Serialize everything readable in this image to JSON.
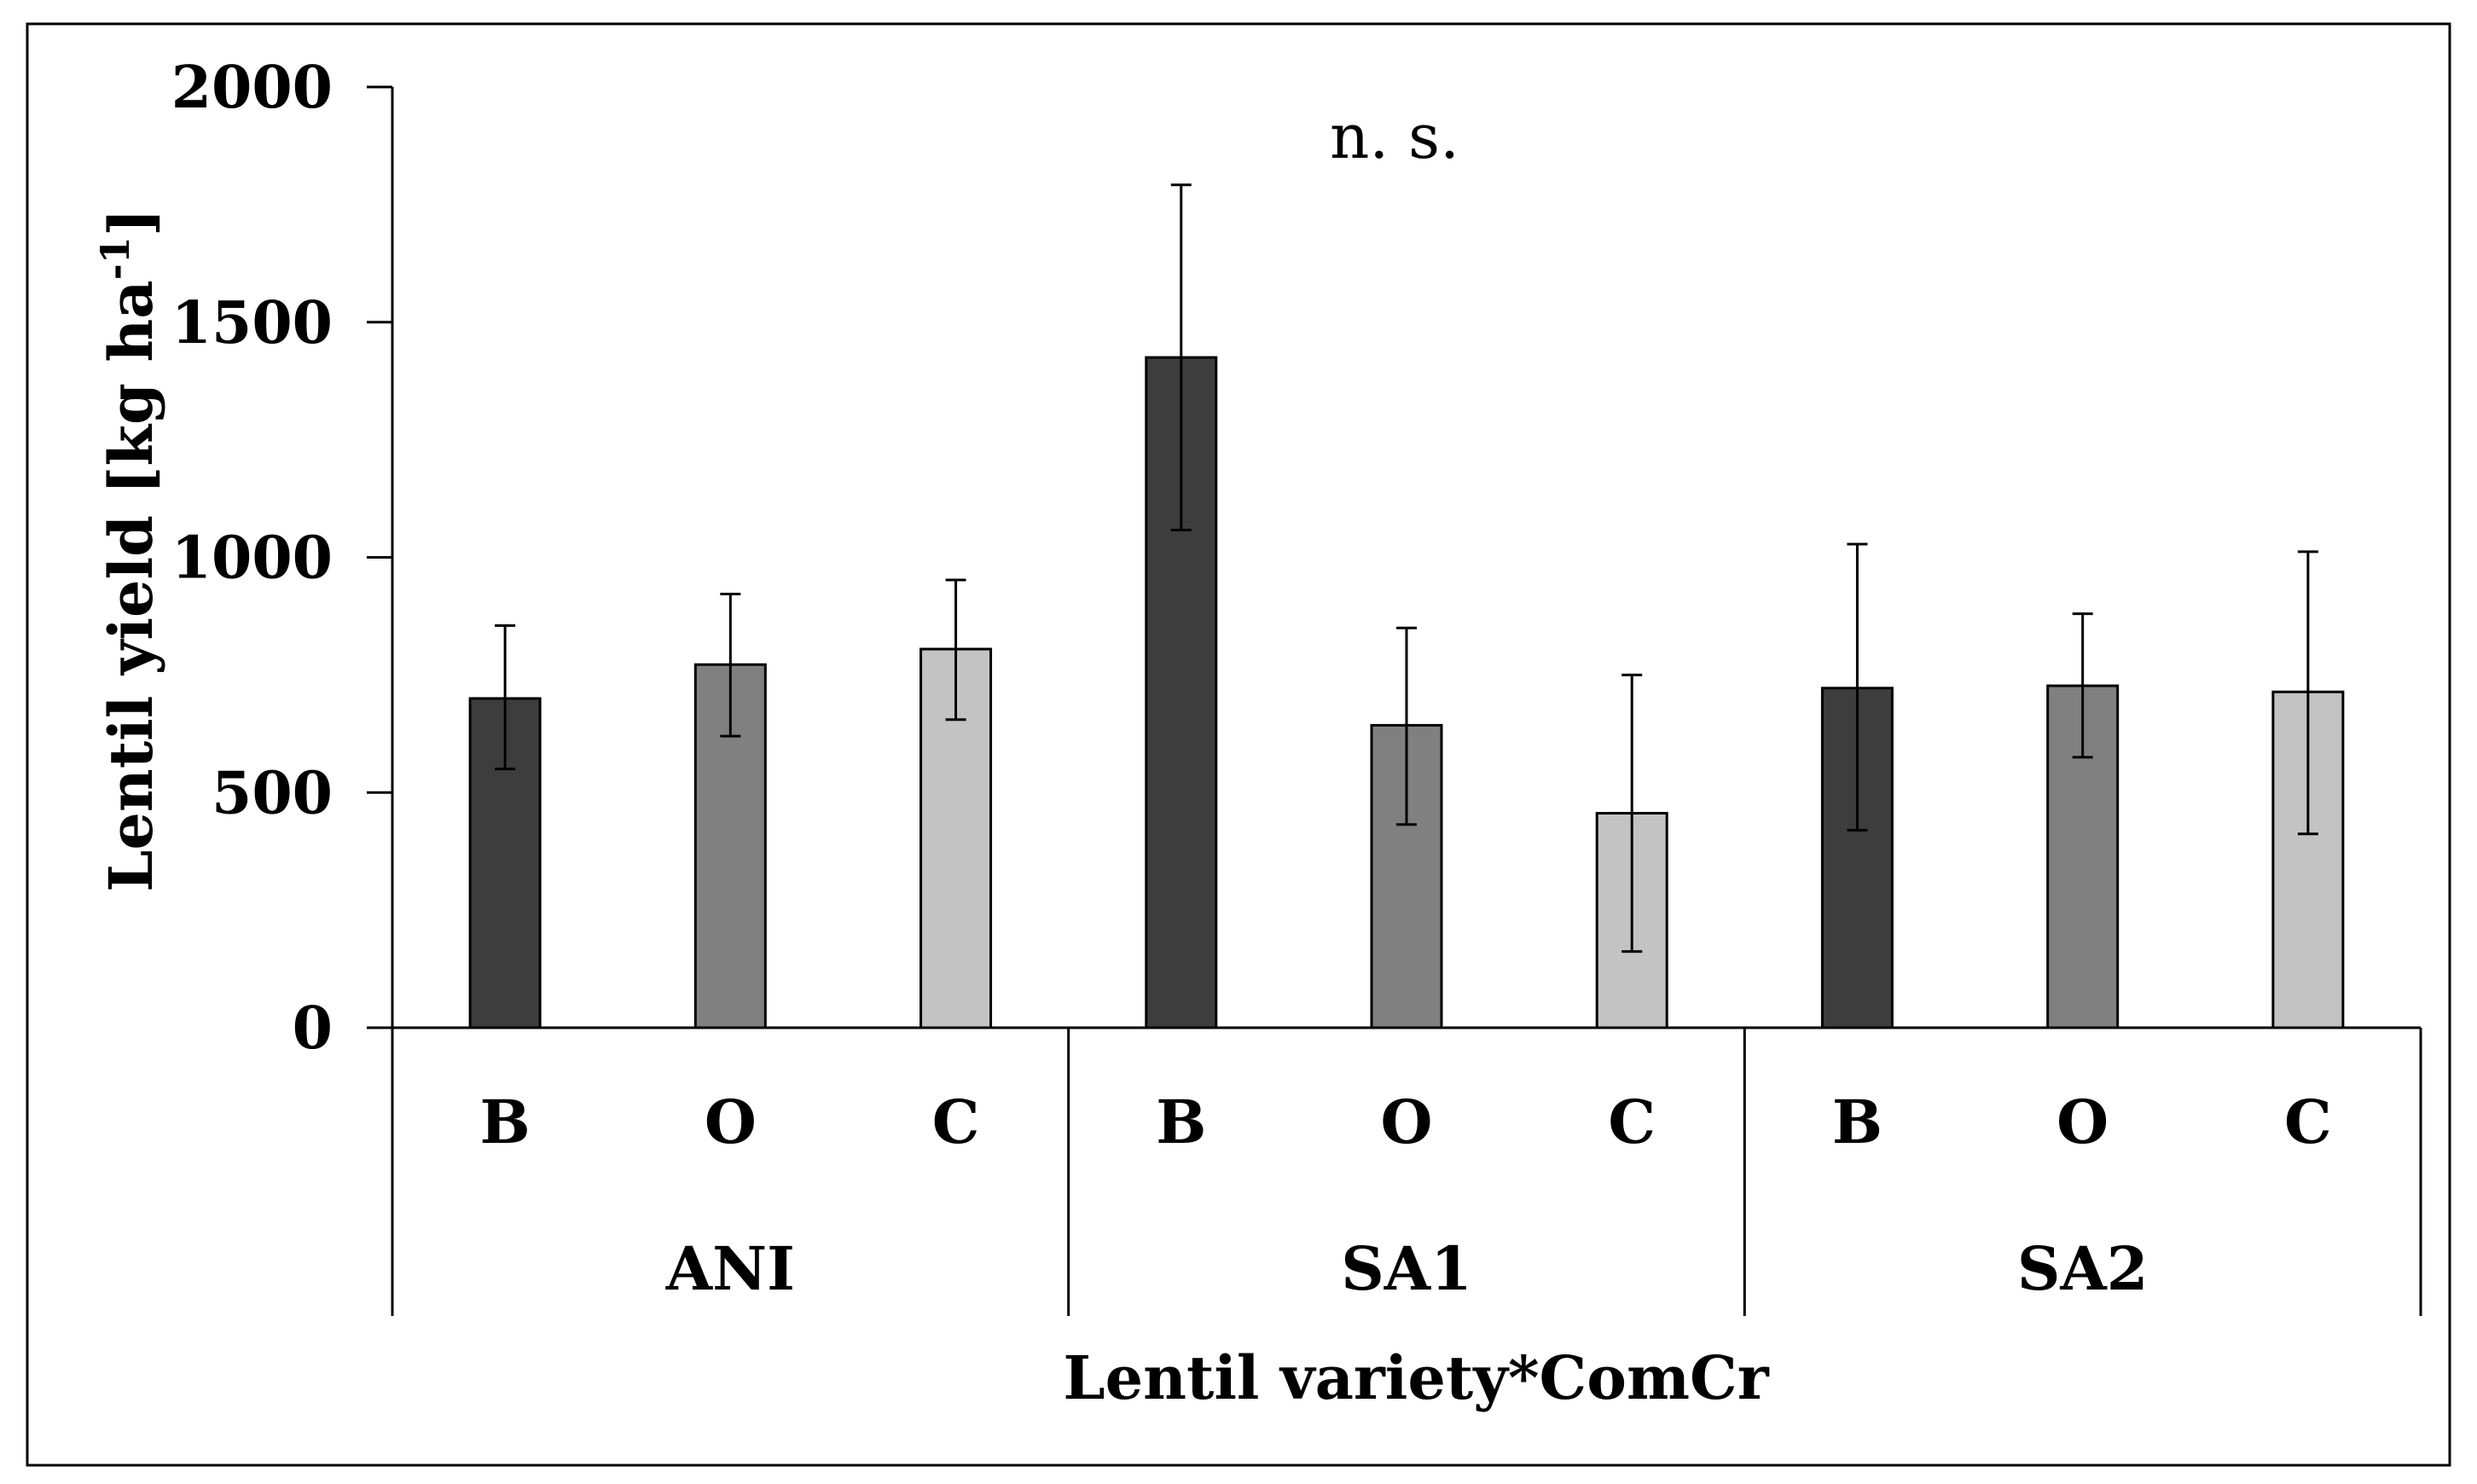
{
  "chart_data": {
    "type": "bar",
    "title": "",
    "ylabel": "Lentil yield [kg ha",
    "ylabel_superscript": "-1",
    "ylabel_suffix": "]",
    "xlabel": "Lentil variety*ComCr",
    "ylim": [
      0,
      2000
    ],
    "yticks": [
      0,
      500,
      1000,
      1500,
      2000
    ],
    "annotation": "n. s.",
    "groups": [
      {
        "name": "ANI",
        "bars": [
          {
            "category": "B",
            "value": 700,
            "error_low": 550,
            "error_high": 855,
            "color": "#3d3d3d"
          },
          {
            "category": "O",
            "value": 772,
            "error_low": 620,
            "error_high": 922,
            "color": "#808080"
          },
          {
            "category": "C",
            "value": 805,
            "error_low": 655,
            "error_high": 952,
            "color": "#c3c3c3"
          }
        ]
      },
      {
        "name": "SA1",
        "bars": [
          {
            "category": "B",
            "value": 1425,
            "error_low": 1058,
            "error_high": 1792,
            "color": "#3d3d3d"
          },
          {
            "category": "O",
            "value": 643,
            "error_low": 432,
            "error_high": 850,
            "color": "#808080"
          },
          {
            "category": "C",
            "value": 456,
            "error_low": 162,
            "error_high": 750,
            "color": "#c3c3c3"
          }
        ]
      },
      {
        "name": "SA2",
        "bars": [
          {
            "category": "B",
            "value": 722,
            "error_low": 420,
            "error_high": 1028,
            "color": "#3d3d3d"
          },
          {
            "category": "O",
            "value": 727,
            "error_low": 575,
            "error_high": 880,
            "color": "#808080"
          },
          {
            "category": "C",
            "value": 714,
            "error_low": 412,
            "error_high": 1012,
            "color": "#c3c3c3"
          }
        ]
      }
    ]
  }
}
